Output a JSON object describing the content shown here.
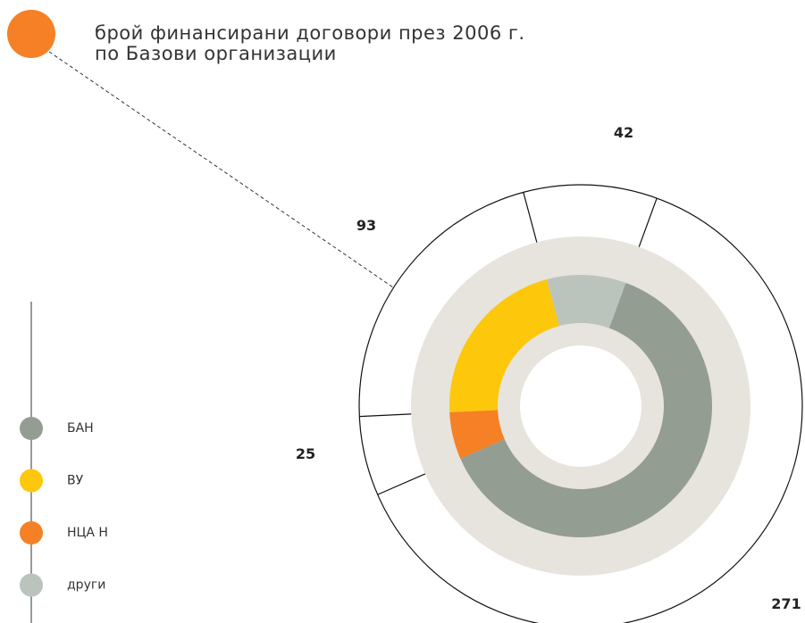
{
  "chart_data": {
    "type": "donut",
    "title": [
      "брой финансирани договори през 2006 г.",
      "по Базови организации"
    ],
    "categories": [
      "БАН",
      "ВУ",
      "НЦА Н",
      "други"
    ],
    "values": [
      271,
      93,
      25,
      42
    ],
    "colors": [
      "#949d92",
      "#fdc70c",
      "#f58025",
      "#bbc3bd"
    ]
  }
}
